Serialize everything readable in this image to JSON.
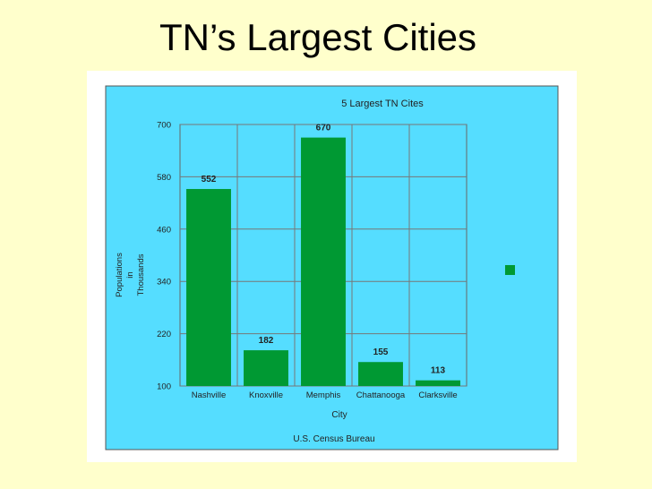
{
  "slide": {
    "title": "TN’s Largest Cities"
  },
  "chart_data": {
    "type": "bar",
    "title": "5 Largest TN Cites",
    "categories": [
      "Nashville",
      "Knoxville",
      "Memphis",
      "Chattanooga",
      "Clarksville"
    ],
    "values": [
      552,
      182,
      670,
      155,
      113
    ],
    "data_labels": [
      "552",
      "182",
      "670",
      "155",
      "113"
    ],
    "xlabel": "City",
    "ylabel_lines": [
      "Populations",
      "in",
      "Thousands"
    ],
    "yticks": [
      "100",
      "220",
      "340",
      "460",
      "580",
      "700"
    ],
    "ylim": [
      100,
      700
    ],
    "grid": true,
    "source_note": "U.S. Census Bureau",
    "legend": "stray green marker at right, no text",
    "colors": {
      "bar": "#009933",
      "plot_background": "#55ddff",
      "panel": "#ffffff"
    }
  }
}
